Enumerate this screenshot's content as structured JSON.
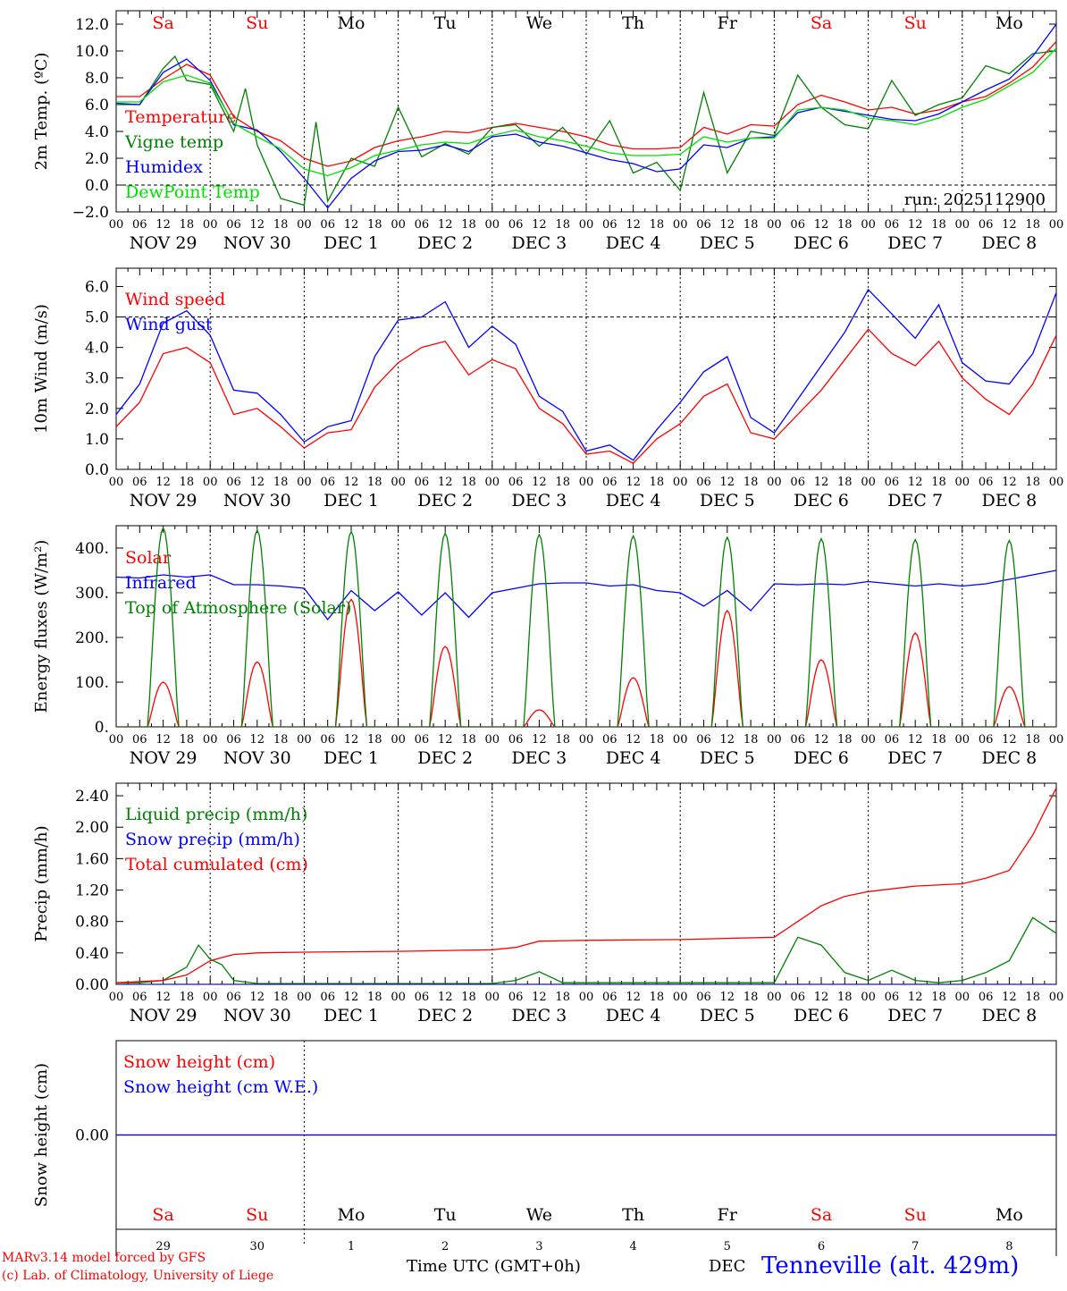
{
  "run_label": "run: 2025112900",
  "days_strip": [
    {
      "label": "Sa",
      "weekend": true
    },
    {
      "label": "Su",
      "weekend": true
    },
    {
      "label": "Mo",
      "weekend": false
    },
    {
      "label": "Tu",
      "weekend": false
    },
    {
      "label": "We",
      "weekend": false
    },
    {
      "label": "Th",
      "weekend": false
    },
    {
      "label": "Fr",
      "weekend": false
    },
    {
      "label": "Sa",
      "weekend": true
    },
    {
      "label": "Su",
      "weekend": true
    },
    {
      "label": "Mo",
      "weekend": false
    }
  ],
  "hour_ticks": [
    "00",
    "06",
    "12",
    "18"
  ],
  "end_hour_tick": "00",
  "date_labels": [
    "NOV 29",
    "NOV 30",
    "DEC  1",
    "DEC  2",
    "DEC  3",
    "DEC  4",
    "DEC  5",
    "DEC  6",
    "DEC  7",
    "DEC  8"
  ],
  "day_numbers": [
    "29",
    "30",
    "1",
    "2",
    "3",
    "4",
    "5",
    "6",
    "7",
    "8"
  ],
  "colors": {
    "red": "#ff0000",
    "green": "#008000",
    "blue": "#0000ff",
    "lightgreen": "#00e000",
    "weekend": "#ff0000",
    "weekday": "#000000"
  },
  "footer": {
    "model": "MARv3.14 model forced by GFS",
    "lab": "(c) Lab. of Climatology, University of Liege",
    "time_axis": "Time UTC (GMT+0h)",
    "month": "DEC",
    "station": "Tenneville (alt. 429m)"
  },
  "chart_data": [
    {
      "type": "line",
      "ylabel": "2m Temp. (ºC)",
      "xlabel": "",
      "ylim": [
        -2,
        13
      ],
      "yticks": [
        -2,
        0,
        2,
        4,
        6,
        8,
        10,
        12
      ],
      "ytick_labels": [
        "−2.0",
        "0.0",
        "2.0",
        "4.0",
        "6.0",
        "8.0",
        "10.0",
        "12.0"
      ],
      "reference_line": 0,
      "x_unit": "hours since 2025-11-29 00 UTC",
      "series": [
        {
          "name": "Temperature",
          "color": "red",
          "x": [
            0,
            6,
            12,
            18,
            24,
            30,
            36,
            42,
            48,
            54,
            60,
            66,
            72,
            78,
            84,
            90,
            96,
            102,
            108,
            114,
            120,
            126,
            132,
            138,
            144,
            150,
            156,
            162,
            168,
            174,
            180,
            186,
            192,
            198,
            204,
            210,
            216,
            222,
            228,
            234,
            240
          ],
          "y": [
            6.6,
            6.6,
            7.9,
            9.0,
            8.2,
            5.1,
            4.0,
            3.3,
            2.0,
            1.4,
            1.8,
            2.8,
            3.3,
            3.6,
            4.0,
            3.9,
            4.3,
            4.6,
            4.3,
            4.0,
            3.6,
            3.0,
            2.7,
            2.7,
            2.8,
            4.3,
            3.8,
            4.5,
            4.4,
            6.0,
            6.7,
            6.2,
            5.6,
            5.8,
            5.3,
            5.6,
            6.2,
            6.6,
            7.6,
            8.8,
            10.7
          ]
        },
        {
          "name": "Vigne temp",
          "color": "green",
          "x": [
            0,
            6,
            12,
            15,
            18,
            24,
            30,
            33,
            36,
            42,
            48,
            51,
            54,
            60,
            66,
            72,
            78,
            84,
            90,
            96,
            102,
            108,
            114,
            120,
            126,
            132,
            138,
            144,
            150,
            156,
            162,
            168,
            174,
            180,
            186,
            192,
            198,
            204,
            210,
            216,
            222,
            228,
            234,
            240
          ],
          "y": [
            6.0,
            6.0,
            8.7,
            9.6,
            7.8,
            7.5,
            4.0,
            7.2,
            3.0,
            -1.0,
            -1.5,
            4.7,
            -1.2,
            2.0,
            1.4,
            5.8,
            2.1,
            3.1,
            2.3,
            4.3,
            4.5,
            2.9,
            4.3,
            2.3,
            4.8,
            0.9,
            1.7,
            -0.4,
            6.9,
            0.9,
            4.0,
            3.7,
            8.2,
            5.8,
            4.5,
            4.2,
            7.8,
            5.2,
            6.0,
            6.5,
            8.9,
            8.3,
            9.8,
            10.0
          ]
        },
        {
          "name": "Humidex",
          "color": "blue",
          "x": [
            0,
            6,
            12,
            18,
            24,
            30,
            36,
            42,
            48,
            54,
            60,
            66,
            72,
            78,
            84,
            90,
            96,
            102,
            108,
            114,
            120,
            126,
            132,
            138,
            144,
            150,
            156,
            162,
            168,
            174,
            180,
            186,
            192,
            198,
            204,
            210,
            216,
            222,
            228,
            234,
            240
          ],
          "y": [
            6.1,
            6.0,
            8.4,
            9.4,
            7.8,
            4.5,
            4.1,
            2.5,
            0.5,
            -1.7,
            0.5,
            1.8,
            2.5,
            2.6,
            3.0,
            2.5,
            3.6,
            3.8,
            3.2,
            2.9,
            2.4,
            1.9,
            1.6,
            1.0,
            1.2,
            3.0,
            2.8,
            3.5,
            3.6,
            5.4,
            5.8,
            5.5,
            5.2,
            4.9,
            4.8,
            5.3,
            6.2,
            7.1,
            7.9,
            9.6,
            12.0
          ]
        },
        {
          "name": "DewPoint Temp",
          "color": "lightgreen",
          "x": [
            0,
            6,
            12,
            18,
            24,
            30,
            36,
            42,
            48,
            54,
            60,
            66,
            72,
            78,
            84,
            90,
            96,
            102,
            108,
            114,
            120,
            126,
            132,
            138,
            144,
            150,
            156,
            162,
            168,
            174,
            180,
            186,
            192,
            198,
            204,
            210,
            216,
            222,
            228,
            234,
            240
          ],
          "y": [
            6.2,
            6.2,
            7.7,
            8.2,
            7.6,
            4.6,
            3.6,
            2.7,
            1.2,
            0.7,
            1.3,
            2.2,
            2.6,
            3.0,
            3.2,
            3.1,
            3.7,
            4.1,
            3.6,
            3.3,
            2.9,
            2.4,
            2.2,
            2.2,
            2.3,
            3.6,
            3.2,
            3.5,
            3.5,
            5.6,
            5.8,
            5.6,
            5.0,
            4.8,
            4.5,
            5.0,
            5.8,
            6.4,
            7.4,
            8.4,
            10.2
          ]
        }
      ]
    },
    {
      "type": "line",
      "ylabel": "10m Wind (m/s)",
      "xlabel": "",
      "ylim": [
        0,
        6.6
      ],
      "yticks": [
        0,
        1,
        2,
        3,
        4,
        5,
        6
      ],
      "ytick_labels": [
        "0.0",
        "1.0",
        "2.0",
        "3.0",
        "4.0",
        "5.0",
        "6.0"
      ],
      "reference_line": 5,
      "x_unit": "hours since 2025-11-29 00 UTC",
      "series": [
        {
          "name": "Wind speed",
          "color": "red",
          "x": [
            0,
            6,
            12,
            18,
            24,
            30,
            36,
            42,
            48,
            54,
            60,
            66,
            72,
            78,
            84,
            90,
            96,
            102,
            108,
            114,
            120,
            126,
            132,
            138,
            144,
            150,
            156,
            162,
            168,
            174,
            180,
            186,
            192,
            198,
            204,
            210,
            216,
            222,
            228,
            234,
            240
          ],
          "y": [
            1.4,
            2.2,
            3.8,
            4.0,
            3.5,
            1.8,
            2.0,
            1.4,
            0.7,
            1.2,
            1.3,
            2.7,
            3.5,
            4.0,
            4.2,
            3.1,
            3.6,
            3.3,
            2.0,
            1.5,
            0.5,
            0.6,
            0.2,
            1.0,
            1.5,
            2.4,
            2.8,
            1.2,
            1.0,
            1.8,
            2.6,
            3.6,
            4.6,
            3.8,
            3.4,
            4.2,
            3.0,
            2.3,
            1.8,
            2.8,
            4.4
          ]
        },
        {
          "name": "Wind gust",
          "color": "blue",
          "x": [
            0,
            6,
            12,
            18,
            24,
            30,
            36,
            42,
            48,
            54,
            60,
            66,
            72,
            78,
            84,
            90,
            96,
            102,
            108,
            114,
            120,
            126,
            132,
            138,
            144,
            150,
            156,
            162,
            168,
            174,
            180,
            186,
            192,
            198,
            204,
            210,
            216,
            222,
            228,
            234,
            240
          ],
          "y": [
            1.8,
            2.8,
            4.8,
            5.2,
            4.4,
            2.6,
            2.5,
            1.8,
            0.9,
            1.4,
            1.6,
            3.7,
            4.9,
            5.0,
            5.5,
            4.0,
            4.7,
            4.1,
            2.4,
            1.9,
            0.6,
            0.8,
            0.3,
            1.3,
            2.2,
            3.2,
            3.7,
            1.7,
            1.2,
            2.3,
            3.4,
            4.5,
            5.9,
            5.1,
            4.3,
            5.4,
            3.5,
            2.9,
            2.8,
            3.8,
            5.8
          ]
        }
      ]
    },
    {
      "type": "line",
      "ylabel": "Energy fluxes (W/m²)",
      "xlabel": "",
      "ylim": [
        0,
        450
      ],
      "yticks": [
        0,
        100,
        200,
        300,
        400
      ],
      "ytick_labels": [
        "0.",
        "100.",
        "200.",
        "300.",
        "400."
      ],
      "x_unit": "hours since 2025-11-29 00 UTC",
      "series": [
        {
          "name": "Solar",
          "color": "red",
          "peak_hour": 12,
          "daytime_hours": [
            8,
            16
          ],
          "daily_peaks": [
            100,
            145,
            285,
            180,
            38,
            110,
            260,
            150,
            210,
            90
          ]
        },
        {
          "name": "Infrared",
          "color": "blue",
          "x": [
            0,
            6,
            12,
            18,
            24,
            30,
            36,
            42,
            48,
            54,
            60,
            66,
            72,
            78,
            84,
            90,
            96,
            102,
            108,
            114,
            120,
            126,
            132,
            138,
            144,
            150,
            156,
            162,
            168,
            174,
            180,
            186,
            192,
            198,
            204,
            210,
            216,
            222,
            228,
            234,
            240
          ],
          "y": [
            335,
            333,
            340,
            335,
            340,
            318,
            318,
            315,
            310,
            240,
            305,
            260,
            302,
            250,
            300,
            245,
            300,
            310,
            320,
            322,
            322,
            315,
            318,
            305,
            300,
            270,
            305,
            260,
            320,
            318,
            320,
            318,
            325,
            320,
            315,
            320,
            315,
            320,
            330,
            340,
            350
          ]
        },
        {
          "name": "Top of Atmosphere (Solar)",
          "color": "green",
          "peak_hour": 12,
          "daytime_hours": [
            8,
            16
          ],
          "daily_peaks": [
            445,
            440,
            437,
            433,
            430,
            427,
            424,
            421,
            419,
            417
          ]
        }
      ]
    },
    {
      "type": "line",
      "ylabel": "Precip (mm/h)",
      "xlabel": "",
      "ylim": [
        0,
        2.56
      ],
      "yticks": [
        0,
        0.4,
        0.8,
        1.2,
        1.6,
        2.0,
        2.4
      ],
      "ytick_labels": [
        "0.00",
        "0.40",
        "0.80",
        "1.20",
        "1.60",
        "2.00",
        "2.40"
      ],
      "x_unit": "hours since 2025-11-29 00 UTC",
      "series": [
        {
          "name": "Liquid precip (mm/h)",
          "color": "green",
          "x": [
            0,
            6,
            12,
            18,
            21,
            24,
            27,
            30,
            36,
            96,
            102,
            108,
            114,
            168,
            174,
            180,
            186,
            192,
            198,
            204,
            210,
            216,
            222,
            228,
            234,
            240
          ],
          "y": [
            0.02,
            0.02,
            0.05,
            0.22,
            0.5,
            0.32,
            0.25,
            0.05,
            0.01,
            0.01,
            0.05,
            0.16,
            0.02,
            0.02,
            0.6,
            0.5,
            0.15,
            0.05,
            0.18,
            0.05,
            0.02,
            0.05,
            0.15,
            0.3,
            0.85,
            0.65
          ]
        },
        {
          "name": "Snow precip (mm/h)",
          "color": "blue",
          "x": [
            0,
            240
          ],
          "y": [
            0,
            0
          ]
        },
        {
          "name": "Total cumulated (cm)",
          "color": "red",
          "x": [
            0,
            12,
            18,
            24,
            30,
            36,
            48,
            72,
            96,
            102,
            108,
            120,
            144,
            168,
            174,
            180,
            186,
            192,
            204,
            216,
            222,
            228,
            234,
            240
          ],
          "y": [
            0.02,
            0.05,
            0.12,
            0.3,
            0.38,
            0.4,
            0.41,
            0.42,
            0.44,
            0.47,
            0.55,
            0.56,
            0.57,
            0.6,
            0.8,
            1.0,
            1.12,
            1.18,
            1.25,
            1.28,
            1.35,
            1.45,
            1.9,
            2.5
          ]
        }
      ]
    },
    {
      "type": "line",
      "ylabel": "Snow height (cm)",
      "xlabel": "Time UTC (GMT+0h)",
      "ylim": [
        -1,
        1
      ],
      "yticks": [
        0
      ],
      "ytick_labels": [
        "0.00"
      ],
      "x_unit": "hours since 2025-11-29 00 UTC",
      "series": [
        {
          "name": "Snow height (cm)",
          "color": "red",
          "x": [
            0,
            240
          ],
          "y": [
            0,
            0
          ]
        },
        {
          "name": "Snow height (cm W.E.)",
          "color": "blue",
          "x": [
            0,
            240
          ],
          "y": [
            0,
            0
          ]
        }
      ]
    }
  ]
}
